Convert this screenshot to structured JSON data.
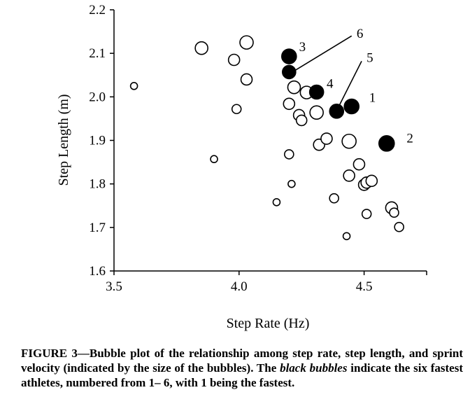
{
  "chart_data": {
    "type": "scatter",
    "xlabel": "Step Rate (Hz)",
    "ylabel": "Step Length (m)",
    "xlim": [
      3.5,
      4.75
    ],
    "ylim": [
      1.6,
      2.2
    ],
    "xticks": [
      3.5,
      4.0,
      4.5
    ],
    "xtick_labels": [
      "3.5",
      "4.0",
      "4.5"
    ],
    "yticks": [
      1.6,
      1.7,
      1.8,
      1.9,
      2.0,
      2.1,
      2.2
    ],
    "ytick_labels": [
      "1.6",
      "1.7",
      "1.8",
      "1.9",
      "2.0",
      "2.1",
      "2.2"
    ],
    "grid": false,
    "series": [
      {
        "fill": "#ffffff",
        "points": [
          {
            "x": 3.58,
            "y": 2.025,
            "size": 5
          },
          {
            "x": 3.85,
            "y": 2.112,
            "size": 9
          },
          {
            "x": 3.9,
            "y": 1.857,
            "size": 5
          },
          {
            "x": 3.98,
            "y": 2.085,
            "size": 8
          },
          {
            "x": 3.99,
            "y": 1.972,
            "size": 6.5
          },
          {
            "x": 4.03,
            "y": 2.04,
            "size": 8
          },
          {
            "x": 4.03,
            "y": 2.125,
            "size": 9.5
          },
          {
            "x": 4.15,
            "y": 1.758,
            "size": 5
          },
          {
            "x": 4.2,
            "y": 1.868,
            "size": 6.5
          },
          {
            "x": 4.2,
            "y": 1.984,
            "size": 8
          },
          {
            "x": 4.21,
            "y": 1.8,
            "size": 5
          },
          {
            "x": 4.22,
            "y": 2.022,
            "size": 9
          },
          {
            "x": 4.24,
            "y": 1.958,
            "size": 8
          },
          {
            "x": 4.25,
            "y": 1.946,
            "size": 7.5
          },
          {
            "x": 4.27,
            "y": 2.01,
            "size": 9
          },
          {
            "x": 4.31,
            "y": 1.964,
            "size": 9.5
          },
          {
            "x": 4.32,
            "y": 1.89,
            "size": 8
          },
          {
            "x": 4.35,
            "y": 1.904,
            "size": 8
          },
          {
            "x": 4.38,
            "y": 1.767,
            "size": 6.5
          },
          {
            "x": 4.43,
            "y": 1.68,
            "size": 5
          },
          {
            "x": 4.44,
            "y": 1.898,
            "size": 10
          },
          {
            "x": 4.44,
            "y": 1.819,
            "size": 8
          },
          {
            "x": 4.48,
            "y": 1.845,
            "size": 8
          },
          {
            "x": 4.5,
            "y": 1.798,
            "size": 8
          },
          {
            "x": 4.51,
            "y": 1.803,
            "size": 8
          },
          {
            "x": 4.51,
            "y": 1.731,
            "size": 6.5
          },
          {
            "x": 4.53,
            "y": 1.807,
            "size": 8
          },
          {
            "x": 4.61,
            "y": 1.745,
            "size": 8.5
          },
          {
            "x": 4.62,
            "y": 1.734,
            "size": 6.5
          },
          {
            "x": 4.64,
            "y": 1.701,
            "size": 6.5
          }
        ]
      },
      {
        "fill": "#000000",
        "points": [
          {
            "x": 4.2,
            "y": 2.093,
            "size": 10.5,
            "label": "3"
          },
          {
            "x": 4.2,
            "y": 2.057,
            "size": 9.5,
            "label": "6"
          },
          {
            "x": 4.31,
            "y": 2.011,
            "size": 10,
            "label": "4"
          },
          {
            "x": 4.39,
            "y": 1.967,
            "size": 10,
            "label": "5"
          },
          {
            "x": 4.45,
            "y": 1.978,
            "size": 10.5,
            "label": "1"
          },
          {
            "x": 4.59,
            "y": 1.893,
            "size": 11,
            "label": "2"
          }
        ]
      }
    ],
    "annotations": [
      {
        "label": "3",
        "text_at": [
          4.24,
          2.115
        ],
        "leader": false
      },
      {
        "label": "6",
        "text_at": [
          4.47,
          2.145
        ],
        "leader": true,
        "line_from": [
          4.21,
          2.056
        ],
        "line_to": [
          4.45,
          2.14
        ]
      },
      {
        "label": "4",
        "text_at": [
          4.35,
          2.03
        ],
        "leader": false
      },
      {
        "label": "5",
        "text_at": [
          4.51,
          2.09
        ],
        "leader": true,
        "line_from": [
          4.39,
          1.968
        ],
        "line_to": [
          4.49,
          2.082
        ]
      },
      {
        "label": "1",
        "text_at": [
          4.52,
          1.998
        ],
        "leader": false
      },
      {
        "label": "2",
        "text_at": [
          4.67,
          1.905
        ],
        "leader": false
      }
    ]
  },
  "caption": {
    "part1": "FIGURE 3—Bubble plot of the relationship among step rate, step length, and sprint velocity (indicated by the size of the bubbles). The ",
    "italic": "black bubbles",
    "part2": " indicate the six fastest athletes, numbered from 1– 6, with 1 being the fastest."
  }
}
